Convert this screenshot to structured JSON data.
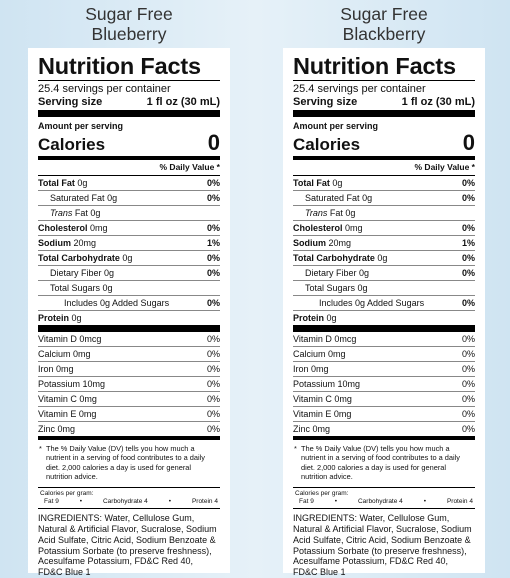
{
  "panels": [
    {
      "title": [
        "Sugar Free",
        "Blueberry"
      ],
      "heading": "Nutrition Facts",
      "servings": "25.4 servings per container",
      "serving_label": "Serving size",
      "serving_size": "1 fl oz (30 mL)",
      "amount_per_serving": "Amount per serving",
      "calories_label": "Calories",
      "calories": "0",
      "dv_header": "% Daily Value *",
      "nutrients": [
        {
          "name": "Total Fat",
          "amount": "0g",
          "dv": "0%"
        },
        {
          "name": "Saturated Fat",
          "amount": "0g",
          "dv": "0%"
        },
        {
          "name": "Trans",
          "amount": "Fat 0g"
        },
        {
          "name": "Cholesterol",
          "amount": "0mg",
          "dv": "0%"
        },
        {
          "name": "Sodium",
          "amount": "20mg",
          "dv": "1%"
        },
        {
          "name": "Total Carbohydrate",
          "amount": "0g",
          "dv": "0%"
        },
        {
          "name": "Dietary Fiber",
          "amount": "0g",
          "dv": "0%"
        },
        {
          "name": "Total Sugars",
          "amount": "0g"
        },
        {
          "name": "Includes 0g Added Sugars",
          "amount": "",
          "dv": "0%"
        },
        {
          "name": "Protein",
          "amount": "0g"
        }
      ],
      "vitamins": [
        {
          "name": "Vitamin D 0mcg",
          "dv": "0%"
        },
        {
          "name": "Calcium 0mg",
          "dv": "0%"
        },
        {
          "name": "Iron 0mg",
          "dv": "0%"
        },
        {
          "name": "Potassium 10mg",
          "dv": "0%"
        },
        {
          "name": "Vitamin C 0mg",
          "dv": "0%"
        },
        {
          "name": "Vitamin E 0mg",
          "dv": "0%"
        },
        {
          "name": "Zinc 0mg",
          "dv": "0%"
        }
      ],
      "footnote": "The % Daily Value (DV) tells you how much a nutrient in a serving of food contributes to a daily diet. 2,000 calories a day is used for general nutrition advice.",
      "calories_per_gram": "Calories per gram:",
      "per_gram": [
        "Fat 9",
        "Carbohydrate 4",
        "Protein 4"
      ],
      "ingredients": "INGREDIENTS: Water, Cellulose Gum, Natural & Artificial Flavor, Sucralose, Sodium Acid Sulfate, Citric Acid, Sodium Benzoate & Potassium Sorbate (to preserve freshness), Acesulfame Potassium, FD&C Red 40, FD&C Blue 1"
    },
    {
      "title": [
        "Sugar Free",
        "Blackberry"
      ],
      "heading": "Nutrition Facts",
      "servings": "25.4 servings per container",
      "serving_label": "Serving size",
      "serving_size": "1 fl oz (30 mL)",
      "amount_per_serving": "Amount per serving",
      "calories_label": "Calories",
      "calories": "0",
      "dv_header": "% Daily Value *",
      "nutrients": [
        {
          "name": "Total Fat",
          "amount": "0g",
          "dv": "0%"
        },
        {
          "name": "Saturated Fat",
          "amount": "0g",
          "dv": "0%"
        },
        {
          "name": "Trans",
          "amount": "Fat 0g"
        },
        {
          "name": "Cholesterol",
          "amount": "0mg",
          "dv": "0%"
        },
        {
          "name": "Sodium",
          "amount": "20mg",
          "dv": "1%"
        },
        {
          "name": "Total Carbohydrate",
          "amount": "0g",
          "dv": "0%"
        },
        {
          "name": "Dietary Fiber",
          "amount": "0g",
          "dv": "0%"
        },
        {
          "name": "Total Sugars",
          "amount": "0g"
        },
        {
          "name": "Includes 0g Added Sugars",
          "amount": "",
          "dv": "0%"
        },
        {
          "name": "Protein",
          "amount": "0g"
        }
      ],
      "vitamins": [
        {
          "name": "Vitamin D 0mcg",
          "dv": "0%"
        },
        {
          "name": "Calcium 0mg",
          "dv": "0%"
        },
        {
          "name": "Iron 0mg",
          "dv": "0%"
        },
        {
          "name": "Potassium 10mg",
          "dv": "0%"
        },
        {
          "name": "Vitamin C 0mg",
          "dv": "0%"
        },
        {
          "name": "Vitamin E 0mg",
          "dv": "0%"
        },
        {
          "name": "Zinc 0mg",
          "dv": "0%"
        }
      ],
      "footnote": "The % Daily Value (DV) tells you how much a nutrient in a serving of food contributes to a daily diet. 2,000 calories a day is used for general nutrition advice.",
      "calories_per_gram": "Calories per gram:",
      "per_gram": [
        "Fat 9",
        "Carbohydrate 4",
        "Protein 4"
      ],
      "ingredients": "INGREDIENTS: Water, Cellulose Gum, Natural & Artificial Flavor, Sucralose, Sodium Acid Sulfate, Citric Acid, Sodium Benzoate & Potassium Sorbate (to preserve freshness), Acesulfame Potassium, FD&C Red 40, FD&C Blue 1"
    }
  ]
}
